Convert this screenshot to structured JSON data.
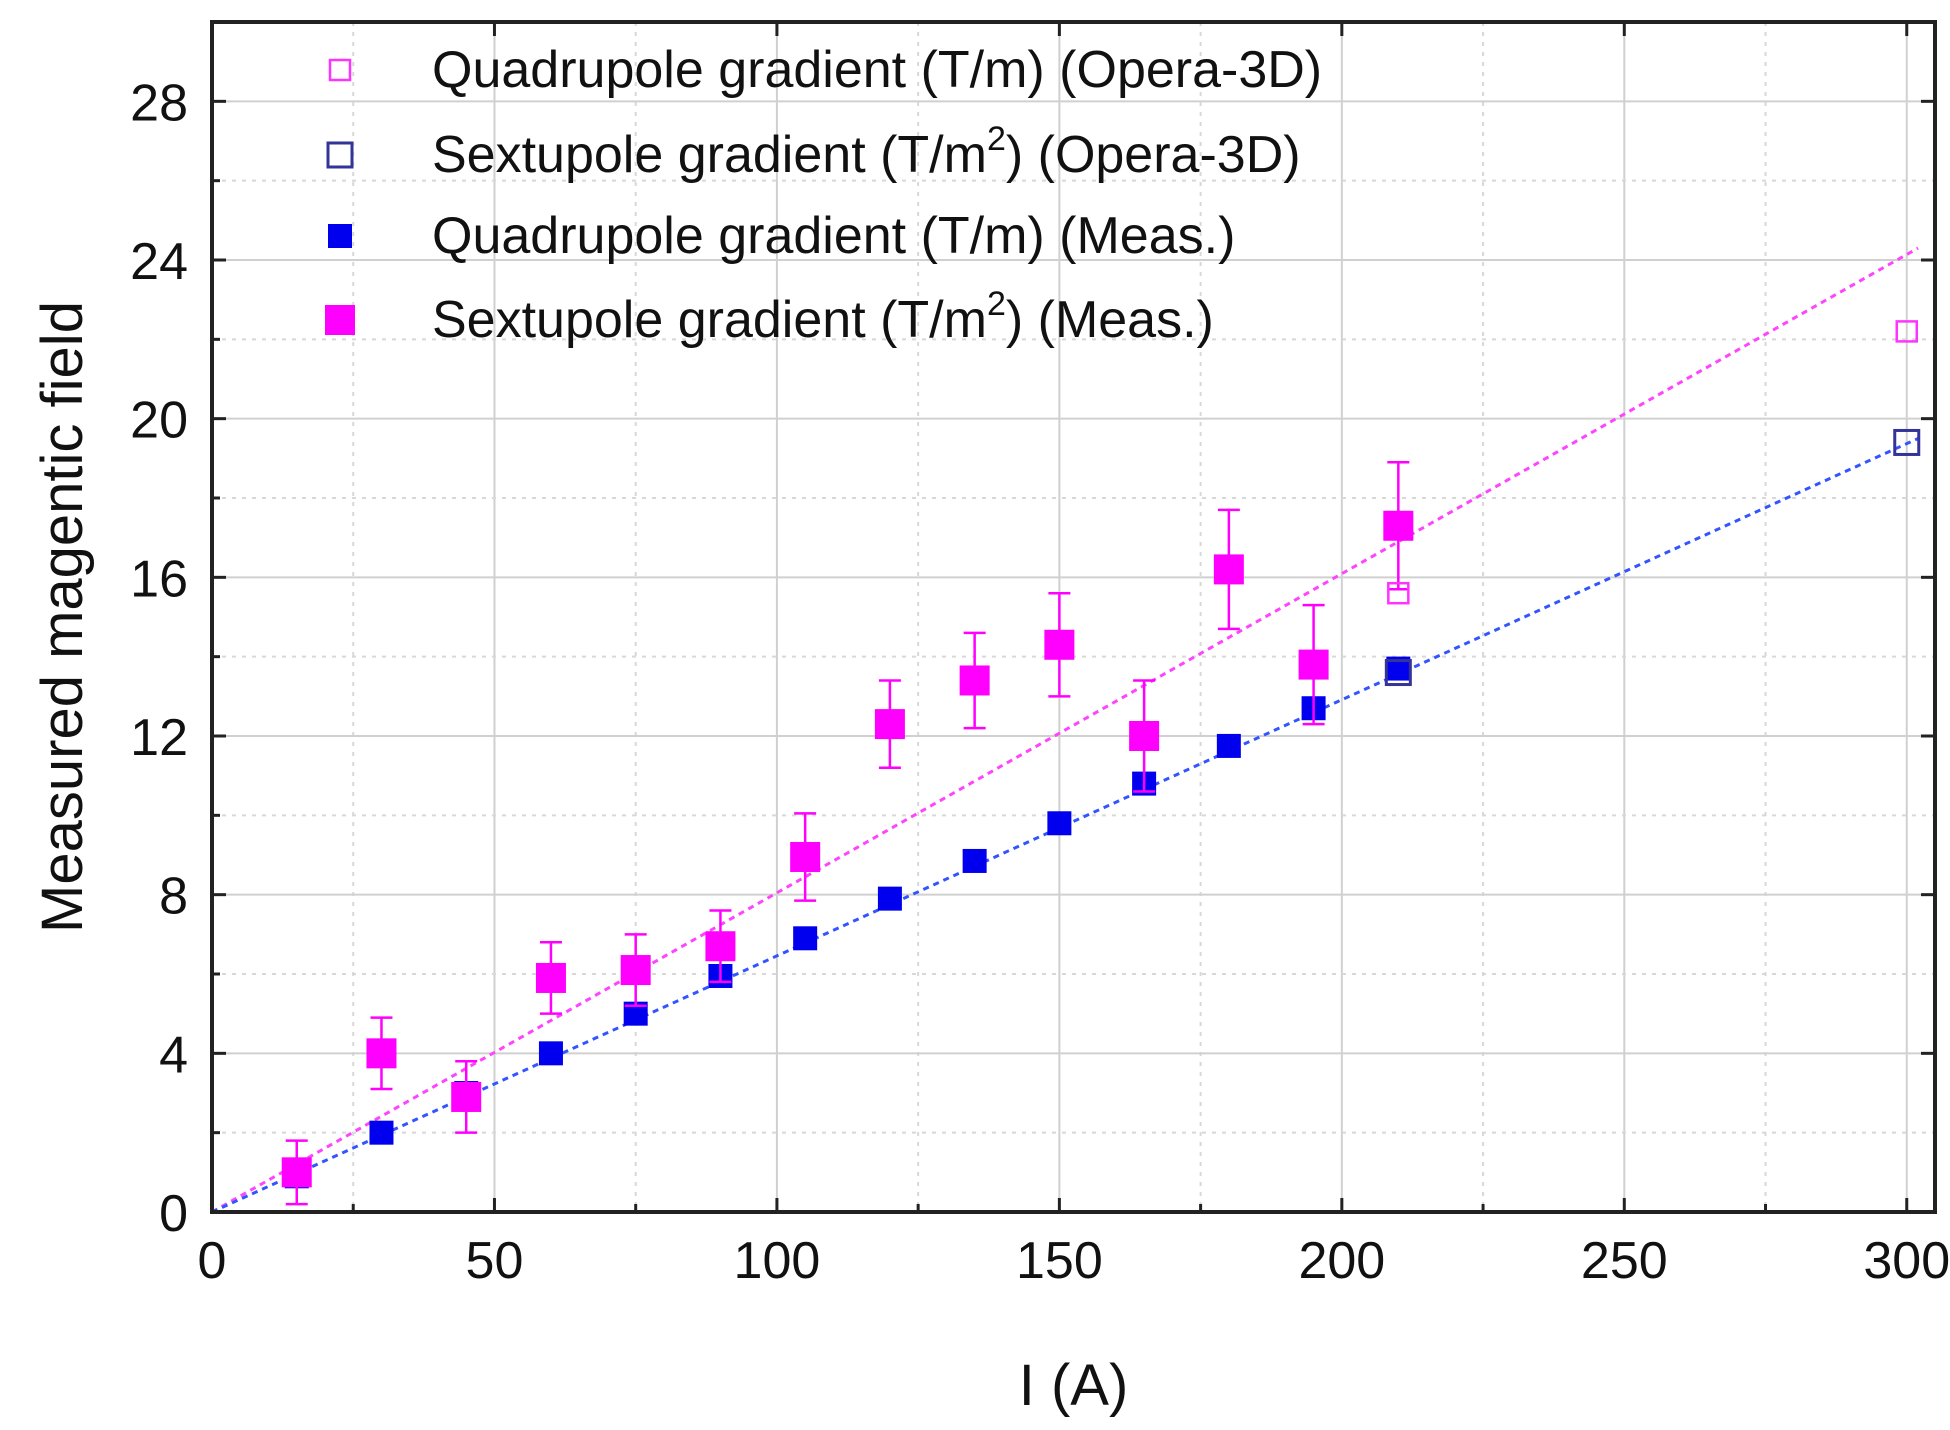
{
  "chart_data": {
    "type": "scatter",
    "title": "",
    "xlabel": "I (A)",
    "ylabel": "Measured magentic field",
    "xlim": [
      0,
      305
    ],
    "ylim": [
      0,
      30
    ],
    "xticks": [
      0,
      50,
      100,
      150,
      200,
      250,
      300
    ],
    "yticks": [
      0,
      4,
      8,
      12,
      16,
      20,
      24,
      28
    ],
    "grid": true,
    "legend_position": "top-left",
    "colors": {
      "magenta": "#ff00ff",
      "blue": "#0000ee",
      "navy": "#333399",
      "magenta_line": "#ff44ff",
      "blue_line": "#3355ff"
    },
    "series": [
      {
        "name": "Quadrupole gradient (T/m) (Opera-3D)",
        "legend_parts": [
          "Quadrupole gradient (T/m) (Opera-3D)"
        ],
        "marker": "open-square-small",
        "color": "#ff33ff",
        "x": [
          210,
          300
        ],
        "y": [
          15.6,
          22.2
        ]
      },
      {
        "name": "Sextupole gradient (T/m²) (Opera-3D)",
        "legend_parts": [
          "Sextupole gradient (T/m",
          "2",
          ") (Opera-3D)"
        ],
        "marker": "open-square",
        "color": "#333399",
        "x": [
          210,
          300
        ],
        "y": [
          13.6,
          19.4
        ]
      },
      {
        "name": "Quadrupole gradient (T/m) (Meas.)",
        "legend_parts": [
          "Quadrupole gradient (T/m) (Meas.)"
        ],
        "marker": "filled-square",
        "color": "#0000ee",
        "x": [
          15,
          30,
          45,
          60,
          75,
          90,
          105,
          120,
          135,
          150,
          165,
          180,
          195,
          210
        ],
        "y": [
          0.9,
          2.0,
          3.0,
          4.0,
          5.0,
          5.95,
          6.9,
          7.9,
          8.85,
          9.8,
          10.8,
          11.75,
          12.7,
          13.7
        ]
      },
      {
        "name": "Sextupole gradient (T/m²) (Meas.)",
        "legend_parts": [
          "Sextupole gradient (T/m",
          "2",
          ") (Meas.)"
        ],
        "marker": "filled-square-large",
        "color": "#ff00ff",
        "x": [
          15,
          30,
          45,
          60,
          75,
          90,
          105,
          120,
          135,
          150,
          165,
          180,
          195,
          210
        ],
        "y": [
          1.0,
          4.0,
          2.9,
          5.9,
          6.1,
          6.7,
          8.95,
          12.3,
          13.4,
          14.3,
          12.0,
          16.2,
          13.8,
          17.3
        ],
        "error": [
          0.8,
          0.9,
          0.9,
          0.9,
          0.9,
          0.9,
          1.1,
          1.1,
          1.2,
          1.3,
          1.4,
          1.5,
          1.5,
          1.6
        ]
      }
    ],
    "fit_lines": [
      {
        "name": "Quadrupole fit",
        "color": "#ff44ff",
        "x": [
          0,
          302
        ],
        "y": [
          0,
          24.3
        ]
      },
      {
        "name": "Sextupole fit",
        "color": "#3355ff",
        "x": [
          0,
          302
        ],
        "y": [
          0,
          19.5
        ]
      }
    ]
  }
}
